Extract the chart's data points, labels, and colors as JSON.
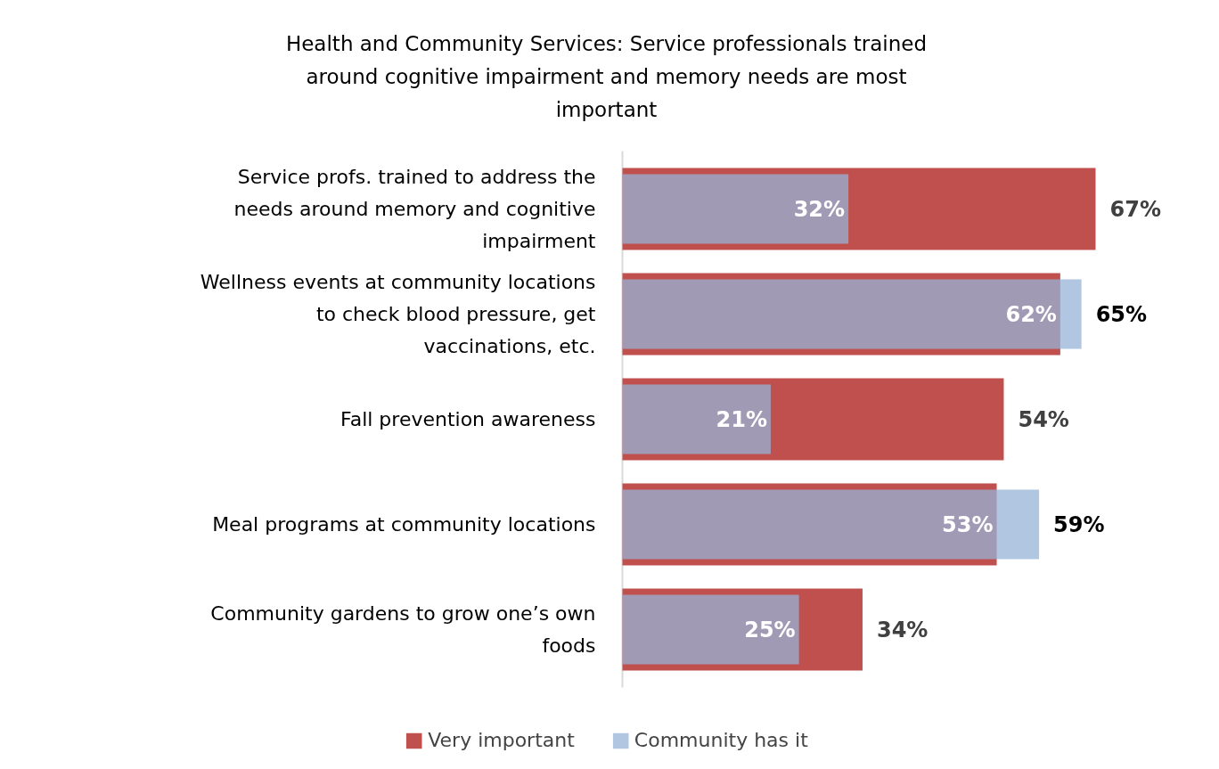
{
  "chart_data": {
    "type": "bar",
    "orientation": "horizontal",
    "title": "Health and Community Services: Service professionals trained around cognitive impairment and memory needs are most important",
    "categories": [
      "Service profs. trained to address the needs around memory and cognitive impairment",
      "Wellness events at community locations to check blood pressure, get vaccinations, etc.",
      "Fall prevention awareness",
      "Meal programs at community locations",
      "Community gardens to grow one’s own foods"
    ],
    "series": [
      {
        "name": "Very important",
        "color": "#c0504d",
        "values": [
          67,
          62,
          54,
          53,
          34
        ],
        "value_labels": [
          "67%",
          "62%",
          "54%",
          "53%",
          "34%"
        ]
      },
      {
        "name": "Community has it",
        "color": "#95b3d7",
        "values": [
          32,
          65,
          21,
          59,
          25
        ],
        "value_labels": [
          "32%",
          "65%",
          "21%",
          "59%",
          "25%"
        ]
      }
    ],
    "legend": "bottom",
    "grid": false
  }
}
